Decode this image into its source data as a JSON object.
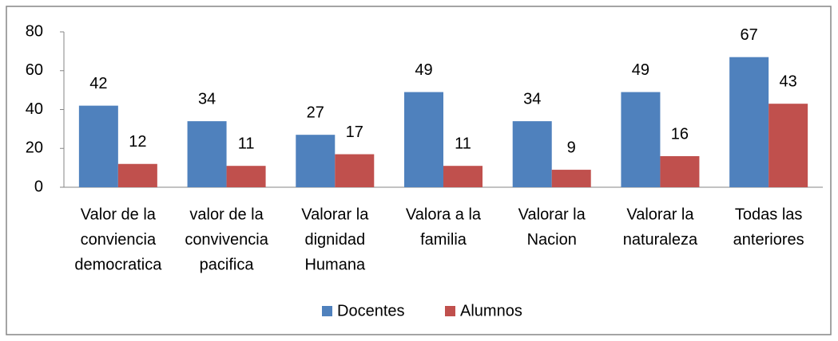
{
  "chart_data": {
    "type": "bar",
    "categories": [
      [
        "Valor de la",
        "conviencia",
        "democratica"
      ],
      [
        "valor de la",
        "convivencia",
        "pacifica"
      ],
      [
        "Valorar la",
        "dignidad",
        "Humana"
      ],
      [
        "Valora a  la",
        "familia"
      ],
      [
        "Valorar la",
        "Nacion"
      ],
      [
        "Valorar la",
        "naturaleza"
      ],
      [
        "Todas las",
        "anteriores"
      ]
    ],
    "series": [
      {
        "name": "Docentes",
        "color": "#4f81bd",
        "values": [
          42,
          34,
          27,
          49,
          34,
          49,
          67
        ]
      },
      {
        "name": "Alumnos",
        "color": "#c0504d",
        "values": [
          12,
          11,
          17,
          11,
          9,
          16,
          43
        ]
      }
    ],
    "ylim": [
      0,
      80
    ],
    "yticks": [
      0,
      20,
      40,
      60,
      80
    ],
    "grid": false,
    "legend": "bottom"
  }
}
